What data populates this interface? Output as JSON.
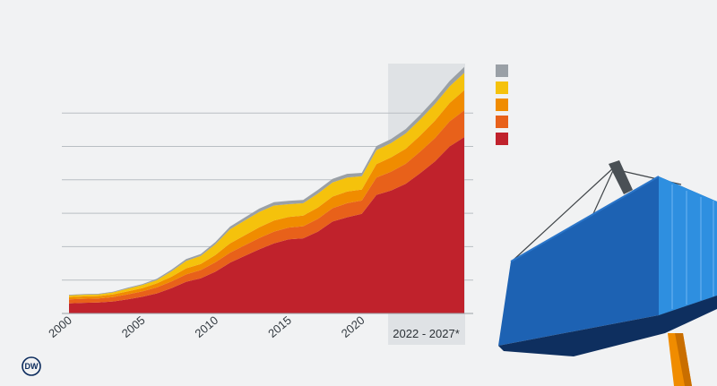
{
  "chart_data": {
    "type": "area",
    "stacked": true,
    "x": [
      2000,
      2001,
      2002,
      2003,
      2004,
      2005,
      2006,
      2007,
      2008,
      2009,
      2010,
      2011,
      2012,
      2013,
      2014,
      2015,
      2016,
      2017,
      2018,
      2019,
      2020,
      2021,
      2022,
      2023,
      2024,
      2025,
      2026,
      2027
    ],
    "xticks": [
      "2000",
      "2005",
      "2010",
      "2015",
      "2020"
    ],
    "forecast_label": "2022 - 2027*",
    "forecast_range": [
      2021.8,
      2027
    ],
    "y_gridlines": [
      1,
      2,
      3,
      4,
      5,
      6
    ],
    "ylim": [
      0,
      7.5
    ],
    "grid": true,
    "series": [
      {
        "color": "#c0222c",
        "values": [
          0.3,
          0.32,
          0.33,
          0.36,
          0.42,
          0.5,
          0.6,
          0.76,
          0.95,
          1.05,
          1.25,
          1.52,
          1.72,
          1.92,
          2.1,
          2.22,
          2.25,
          2.45,
          2.75,
          2.88,
          2.98,
          3.55,
          3.68,
          3.88,
          4.2,
          4.55,
          5.0,
          5.28
        ]
      },
      {
        "color": "#e8611a",
        "values": [
          0.12,
          0.12,
          0.12,
          0.13,
          0.15,
          0.16,
          0.18,
          0.2,
          0.22,
          0.25,
          0.28,
          0.3,
          0.32,
          0.34,
          0.35,
          0.35,
          0.36,
          0.38,
          0.4,
          0.42,
          0.4,
          0.52,
          0.56,
          0.6,
          0.65,
          0.7,
          0.75,
          0.8
        ]
      },
      {
        "color": "#f08c00",
        "values": [
          0.07,
          0.07,
          0.07,
          0.08,
          0.09,
          0.1,
          0.12,
          0.14,
          0.18,
          0.18,
          0.22,
          0.28,
          0.3,
          0.32,
          0.33,
          0.32,
          0.32,
          0.34,
          0.35,
          0.35,
          0.33,
          0.4,
          0.43,
          0.45,
          0.48,
          0.52,
          0.55,
          0.6
        ]
      },
      {
        "color": "#f5c20c",
        "values": [
          0.05,
          0.05,
          0.05,
          0.06,
          0.08,
          0.09,
          0.1,
          0.16,
          0.22,
          0.24,
          0.32,
          0.42,
          0.44,
          0.46,
          0.45,
          0.38,
          0.37,
          0.42,
          0.42,
          0.42,
          0.4,
          0.42,
          0.43,
          0.46,
          0.48,
          0.5,
          0.5,
          0.52
        ]
      },
      {
        "color": "#9aa0a6",
        "values": [
          0.02,
          0.02,
          0.02,
          0.02,
          0.03,
          0.03,
          0.04,
          0.05,
          0.06,
          0.06,
          0.07,
          0.08,
          0.09,
          0.1,
          0.1,
          0.1,
          0.1,
          0.11,
          0.11,
          0.11,
          0.1,
          0.12,
          0.12,
          0.13,
          0.14,
          0.15,
          0.16,
          0.18
        ]
      }
    ]
  },
  "legend": [
    {
      "color": "#9aa0a6"
    },
    {
      "color": "#f5c20c"
    },
    {
      "color": "#f08c00"
    },
    {
      "color": "#e8611a"
    },
    {
      "color": "#c0222c"
    }
  ],
  "branding": {
    "logo_text": "DW"
  }
}
